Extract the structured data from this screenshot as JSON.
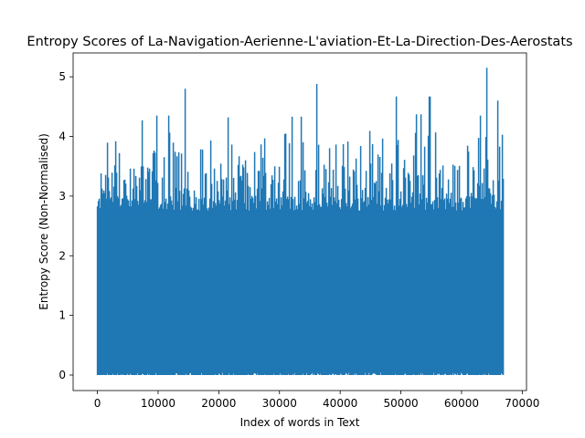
{
  "chart_data": {
    "type": "line",
    "title": "Entropy Scores of La-Navigation-Aerienne-L'aviation-Et-La-Direction-Des-Aerostats",
    "xlabel": "Index of words in Text",
    "ylabel": "Entropy Score (Non-Normalised)",
    "xlim": [
      -4000,
      70700
    ],
    "ylim": [
      -0.26,
      5.4
    ],
    "xticks": [
      0,
      10000,
      20000,
      30000,
      40000,
      50000,
      60000,
      70000
    ],
    "xtick_labels": [
      "0",
      "10000",
      "20000",
      "30000",
      "40000",
      "50000",
      "60000",
      "70000"
    ],
    "yticks": [
      0,
      1,
      2,
      3,
      4,
      5
    ],
    "ytick_labels": [
      "0",
      "1",
      "2",
      "3",
      "4",
      "5"
    ],
    "grid": false,
    "legend": "none",
    "series": [
      {
        "color": "#1f77b4",
        "n_points": 66800,
        "y_min": 0.0,
        "y_max": 5.15,
        "dense_band_top": 2.75,
        "notable_peaks": [
          {
            "x": 14500,
            "y": 4.8
          },
          {
            "x": 36100,
            "y": 4.88
          },
          {
            "x": 49200,
            "y": 4.67
          },
          {
            "x": 54700,
            "y": 4.67
          },
          {
            "x": 64100,
            "y": 5.15
          },
          {
            "x": 65900,
            "y": 4.6
          },
          {
            "x": 7400,
            "y": 4.27
          },
          {
            "x": 9800,
            "y": 4.35
          },
          {
            "x": 11700,
            "y": 4.35
          },
          {
            "x": 21500,
            "y": 4.32
          },
          {
            "x": 32000,
            "y": 4.33
          },
          {
            "x": 33500,
            "y": 4.33
          },
          {
            "x": 52500,
            "y": 4.37
          },
          {
            "x": 53300,
            "y": 4.37
          },
          {
            "x": 63000,
            "y": 4.35
          }
        ]
      }
    ]
  }
}
